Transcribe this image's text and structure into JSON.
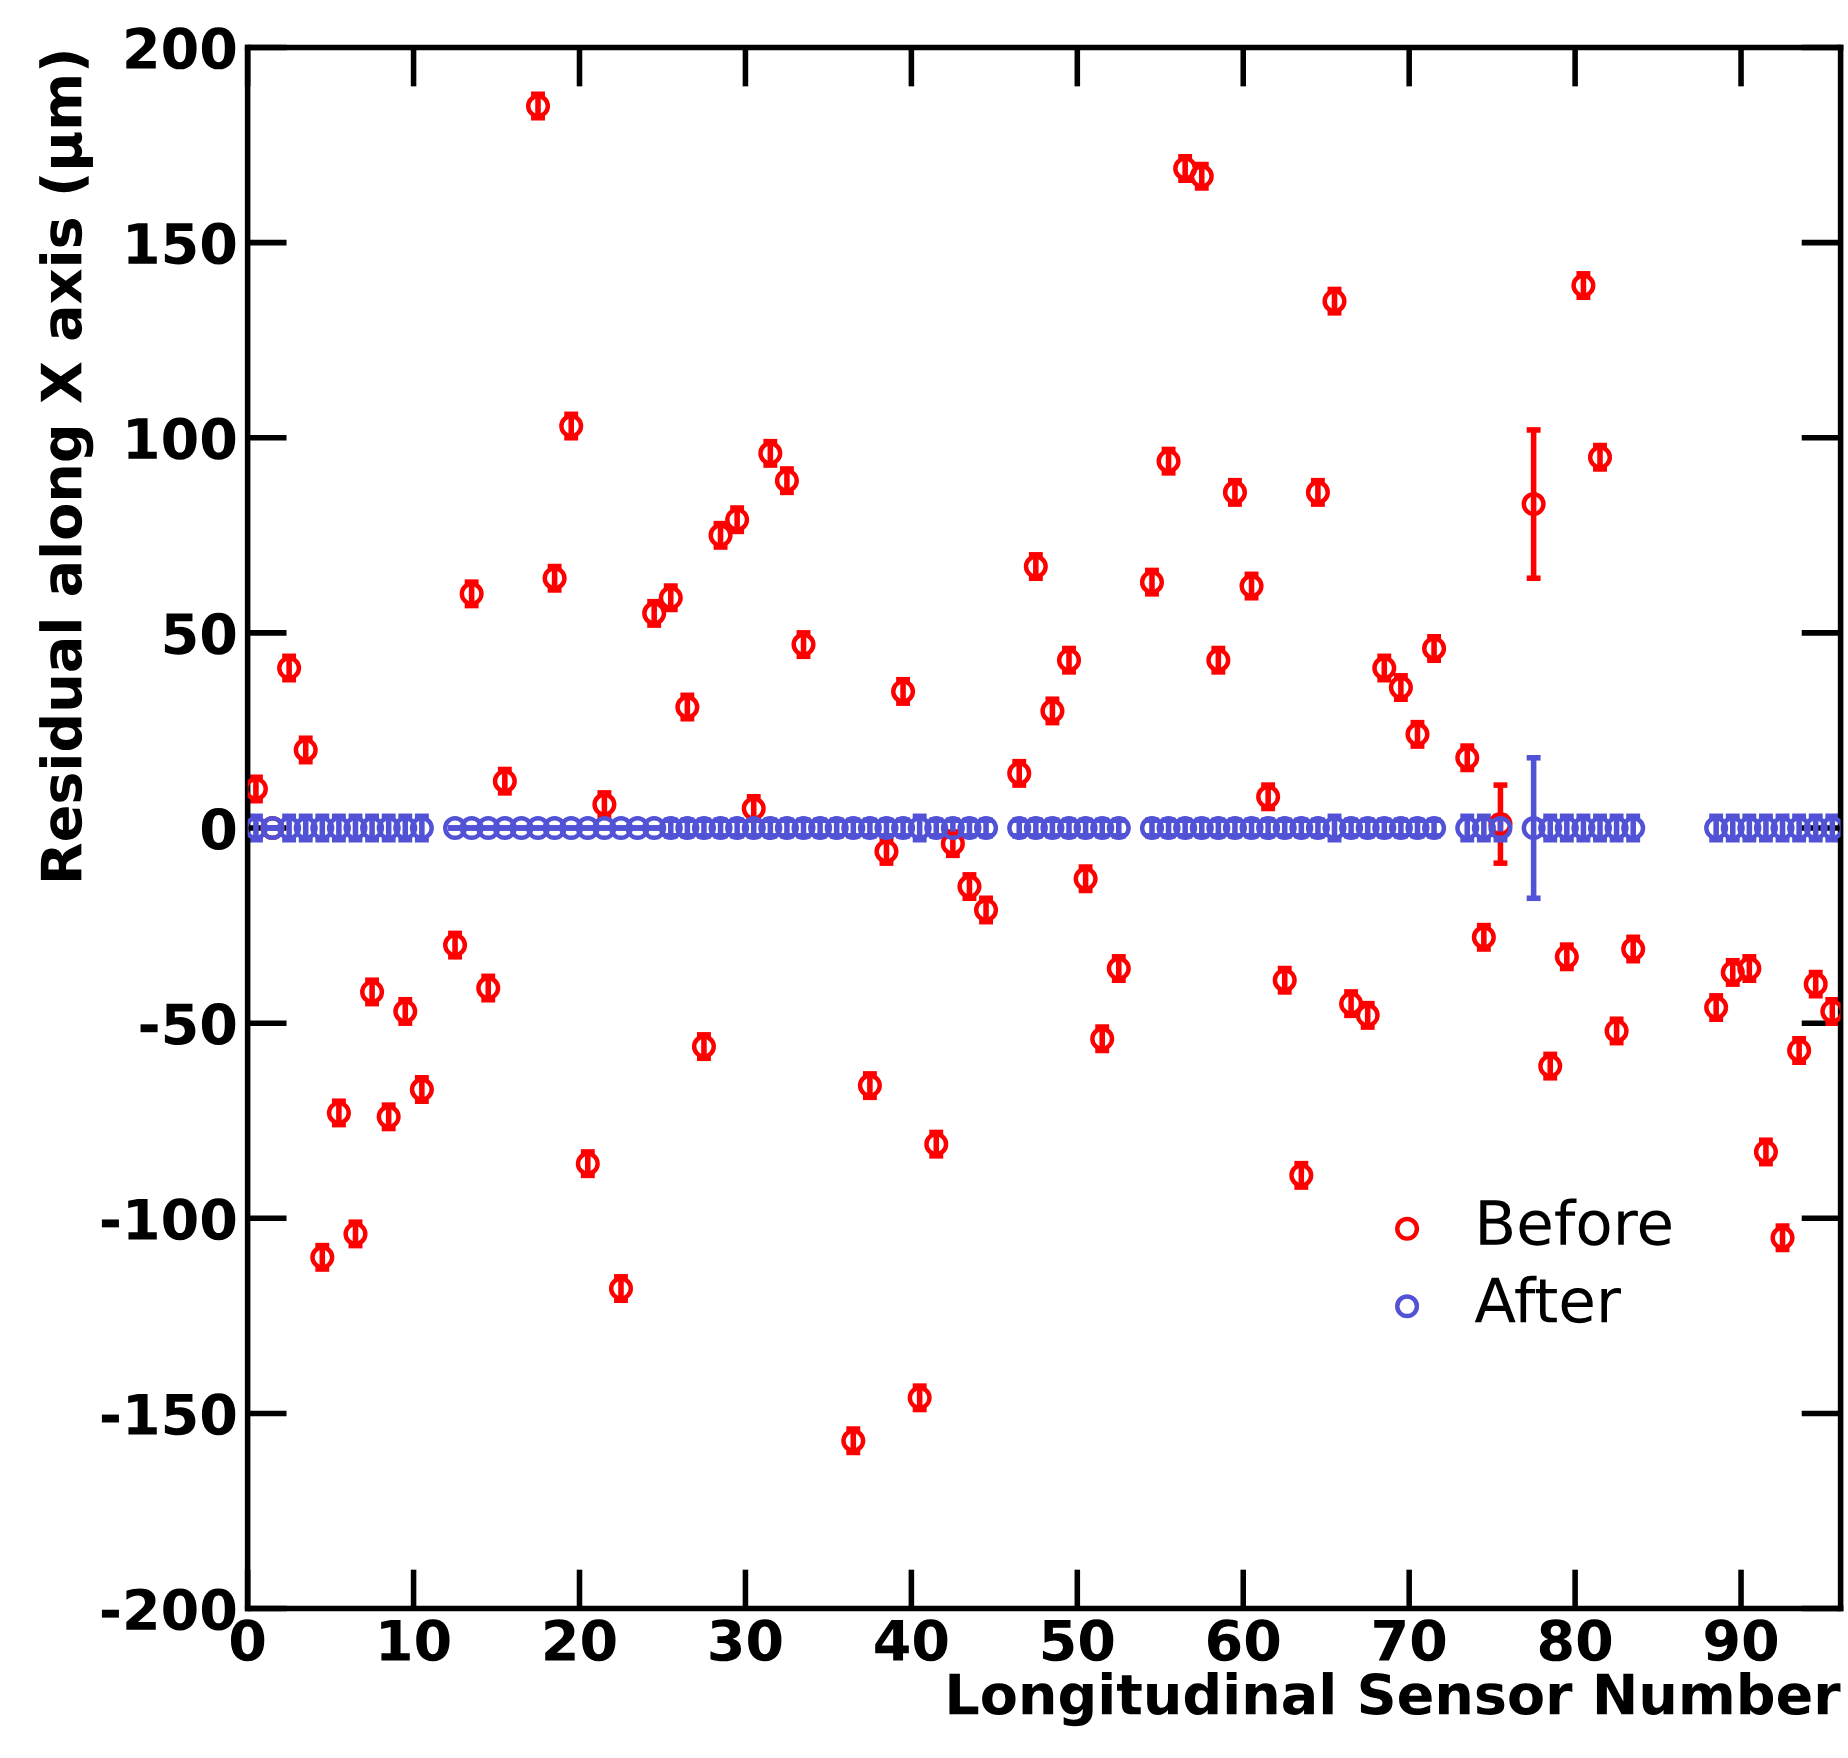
{
  "chart_data": {
    "type": "scatter",
    "xlabel": "Longitudinal Sensor Number",
    "ylabel": "Residual along X axis (μm)",
    "x": [
      0.5,
      1.5,
      2.5,
      3.5,
      4.5,
      5.5,
      6.5,
      7.5,
      8.5,
      9.5,
      10.5,
      11.5,
      12.5,
      13.5,
      14.5,
      15.5,
      16.5,
      17.5,
      18.5,
      19.5,
      20.5,
      21.5,
      22.5,
      23.5,
      24.5,
      25.5,
      26.5,
      27.5,
      28.5,
      29.5,
      30.5,
      31.5,
      32.5,
      33.5,
      34.5,
      35.5,
      36.5,
      37.5,
      38.5,
      39.5,
      40.5,
      41.5,
      42.5,
      43.5,
      44.5,
      45.5,
      46.5,
      47.5,
      48.5,
      49.5,
      50.5,
      51.5,
      52.5,
      53.5,
      54.5,
      55.5,
      56.5,
      57.5,
      58.5,
      59.5,
      60.5,
      61.5,
      62.5,
      63.5,
      64.5,
      65.5,
      66.5,
      67.5,
      68.5,
      69.5,
      70.5,
      71.5,
      72.5,
      73.5,
      74.5,
      75.5,
      76.5,
      77.5,
      78.5,
      79.5,
      80.5,
      81.5,
      82.5,
      83.5,
      84.5,
      85.5,
      86.5,
      87.5,
      88.5,
      89.5,
      90.5,
      91.5,
      92.5,
      93.5,
      94.5,
      95.5
    ],
    "series": [
      {
        "name": "Before",
        "color": "#ff0000",
        "values": [
          10,
          0,
          41,
          20,
          -110,
          -73,
          -104,
          -42,
          -74,
          -47,
          -67,
          null,
          -30,
          60,
          -41,
          12,
          null,
          185,
          64,
          103,
          -86,
          6,
          -118,
          null,
          55,
          59,
          31,
          -56,
          75,
          79,
          5,
          96,
          89,
          47,
          null,
          null,
          -157,
          -66,
          -6,
          35,
          -146,
          -81,
          -4,
          -15,
          -21,
          null,
          14,
          67,
          30,
          43,
          -13,
          -54,
          -36,
          null,
          63,
          94,
          169,
          167,
          43,
          86,
          62,
          8,
          -39,
          -89,
          86,
          135,
          -45,
          -48,
          41,
          36,
          24,
          46,
          null,
          18,
          -28,
          1,
          null,
          83,
          -61,
          -33,
          139,
          95,
          -52,
          -31,
          null,
          null,
          null,
          null,
          -46,
          -37,
          -36,
          -83,
          -105,
          -57,
          -40,
          -47
        ],
        "errors": [
          3,
          null,
          3,
          3,
          3,
          3,
          3,
          3,
          3,
          3,
          3,
          null,
          3,
          3,
          3,
          3,
          null,
          3,
          3,
          3,
          3,
          3,
          3,
          null,
          3,
          3,
          3,
          3,
          3,
          3,
          3,
          3,
          3,
          3,
          null,
          null,
          3,
          3,
          3,
          3,
          3,
          3,
          3,
          3,
          3,
          null,
          3,
          3,
          3,
          3,
          3,
          3,
          3,
          null,
          3,
          3,
          3,
          3,
          3,
          3,
          3,
          3,
          3,
          3,
          3,
          3,
          3,
          3,
          3,
          3,
          3,
          3,
          null,
          3,
          3,
          10,
          null,
          19,
          3,
          3,
          3,
          3,
          3,
          3,
          null,
          null,
          null,
          null,
          3,
          3,
          3,
          3,
          3,
          3,
          3,
          3
        ]
      },
      {
        "name": "After",
        "color": "#5252d6",
        "values": [
          0,
          0,
          0,
          0,
          0,
          0,
          0,
          0,
          0,
          0,
          0,
          null,
          0,
          0,
          0,
          0,
          0,
          0,
          0,
          0,
          0,
          0,
          0,
          0,
          0,
          0,
          0,
          0,
          0,
          0,
          0,
          0,
          0,
          0,
          0,
          0,
          0,
          0,
          0,
          0,
          0,
          0,
          0,
          0,
          0,
          null,
          0,
          0,
          0,
          0,
          0,
          0,
          0,
          null,
          0,
          0,
          0,
          0,
          0,
          0,
          0,
          0,
          0,
          0,
          0,
          0,
          0,
          0,
          0,
          0,
          0,
          0,
          null,
          0,
          0,
          0,
          null,
          0,
          0,
          0,
          0,
          0,
          0,
          0,
          null,
          null,
          null,
          null,
          0,
          0,
          0,
          0,
          0,
          0,
          0,
          0
        ],
        "errors": [
          3,
          null,
          3,
          3,
          3,
          3,
          3,
          3,
          3,
          3,
          3,
          null,
          null,
          null,
          null,
          null,
          null,
          null,
          null,
          null,
          null,
          null,
          null,
          null,
          null,
          2,
          2,
          2,
          2,
          2,
          2,
          2,
          2,
          2,
          2,
          2,
          2,
          2,
          2,
          2,
          3,
          2,
          2,
          2,
          2,
          null,
          2,
          2,
          2,
          2,
          2,
          2,
          2,
          null,
          2,
          2,
          2,
          2,
          2,
          2,
          2,
          2,
          2,
          2,
          2,
          3,
          2,
          2,
          2,
          2,
          2,
          2,
          null,
          3,
          3,
          3,
          null,
          18,
          3,
          3,
          3,
          3,
          3,
          3,
          null,
          null,
          null,
          null,
          3,
          3,
          3,
          3,
          3,
          3,
          3,
          3
        ]
      }
    ],
    "xlim": [
      0,
      96
    ],
    "xticks": [
      0,
      10,
      20,
      30,
      40,
      50,
      60,
      70,
      80,
      90
    ],
    "ylim": [
      -200,
      200
    ],
    "yticks": [
      -200,
      -150,
      -100,
      -50,
      0,
      50,
      100,
      150,
      200
    ],
    "marker": "circle",
    "grid": false,
    "legend": "bottom right"
  }
}
